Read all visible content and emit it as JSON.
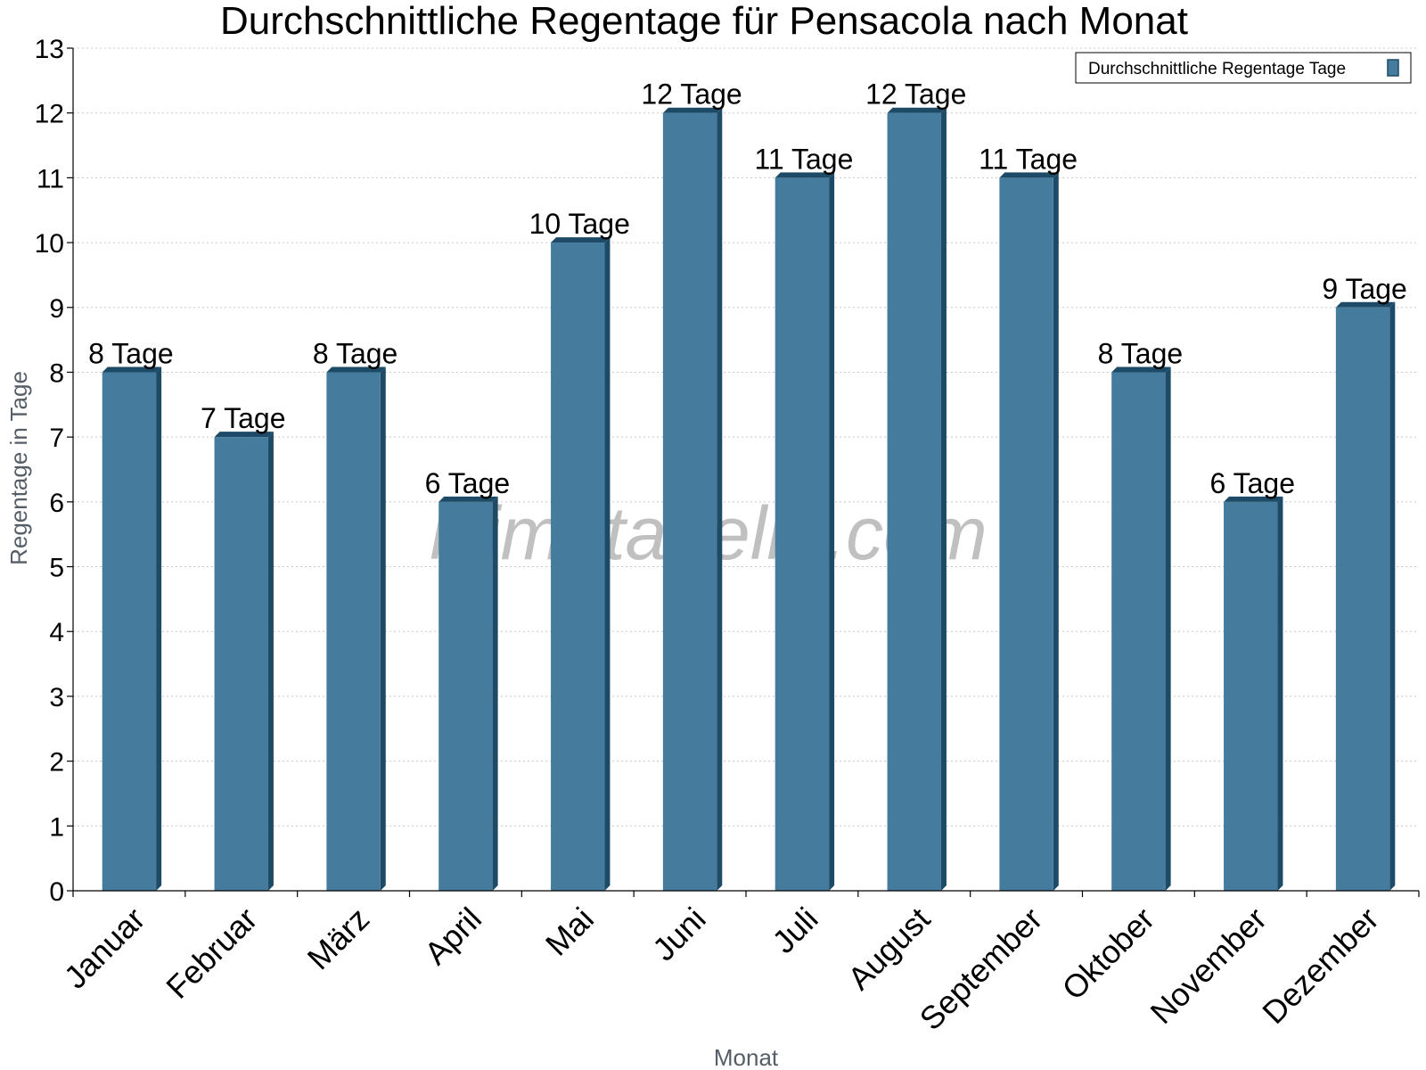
{
  "chart_data": {
    "type": "bar",
    "title": "Durchschnittliche Regentage für Pensacola nach Monat",
    "xlabel": "Monat",
    "ylabel": "Regentage in Tage",
    "ylim": [
      0,
      13
    ],
    "yticks": [
      0,
      1,
      2,
      3,
      4,
      5,
      6,
      7,
      8,
      9,
      10,
      11,
      12,
      13
    ],
    "grid": true,
    "legend_position": "top-right",
    "categories": [
      "Januar",
      "Februar",
      "März",
      "April",
      "Mai",
      "Juni",
      "Juli",
      "August",
      "September",
      "Oktober",
      "November",
      "Dezember"
    ],
    "series": [
      {
        "name": "Durchschnittliche Regentage Tage",
        "values": [
          8,
          7,
          8,
          6,
          10,
          12,
          11,
          12,
          11,
          8,
          6,
          9
        ],
        "labels": [
          "8 Tage",
          "7 Tage",
          "8 Tage",
          "6 Tage",
          "10 Tage",
          "12 Tage",
          "11 Tage",
          "12 Tage",
          "11 Tage",
          "8 Tage",
          "6 Tage",
          "9 Tage"
        ]
      }
    ],
    "colors": {
      "bar": "#457b9d",
      "bar_side": "#1d4a66"
    }
  },
  "watermark": "klimatabelle.com"
}
